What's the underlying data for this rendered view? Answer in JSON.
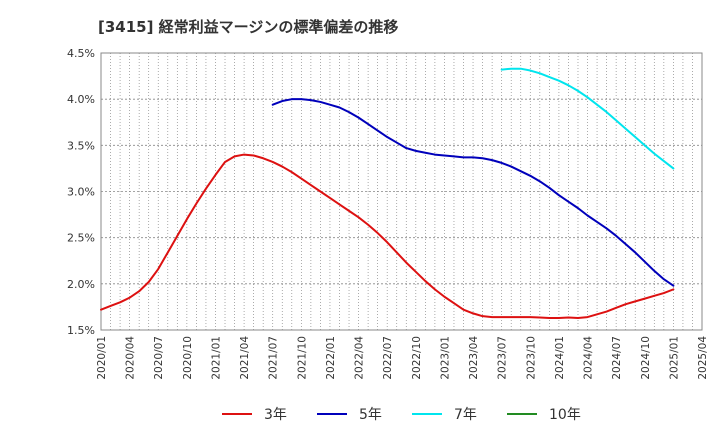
{
  "chart_data": {
    "type": "line",
    "title": "[3415]  経常利益マージンの標準偏差の推移",
    "xlabel": "",
    "ylabel": "",
    "x_ticks": [
      "2020/01",
      "2020/04",
      "2020/07",
      "2020/10",
      "2021/01",
      "2021/04",
      "2021/07",
      "2021/10",
      "2022/01",
      "2022/04",
      "2022/07",
      "2022/10",
      "2023/01",
      "2023/04",
      "2023/07",
      "2023/10",
      "2024/01",
      "2024/04",
      "2024/07",
      "2024/10",
      "2025/01",
      "2025/04"
    ],
    "y_ticks": [
      "1.5%",
      "2.0%",
      "2.5%",
      "3.0%",
      "3.5%",
      "4.0%",
      "4.5%"
    ],
    "ylim": [
      1.5,
      4.5
    ],
    "xlim": [
      "2020/01",
      "2025/04"
    ],
    "grid": true,
    "legend_position": "bottom",
    "series": [
      {
        "name": "3年",
        "color": "#dd1111",
        "x": [
          "2020/01",
          "2020/02",
          "2020/03",
          "2020/04",
          "2020/05",
          "2020/06",
          "2020/07",
          "2020/08",
          "2020/09",
          "2020/10",
          "2020/11",
          "2020/12",
          "2021/01",
          "2021/02",
          "2021/03",
          "2021/04",
          "2021/05",
          "2021/06",
          "2021/07",
          "2021/08",
          "2021/09",
          "2021/10",
          "2021/11",
          "2021/12",
          "2022/01",
          "2022/02",
          "2022/03",
          "2022/04",
          "2022/05",
          "2022/06",
          "2022/07",
          "2022/08",
          "2022/09",
          "2022/10",
          "2022/11",
          "2022/12",
          "2023/01",
          "2023/02",
          "2023/03",
          "2023/04",
          "2023/05",
          "2023/06",
          "2023/07",
          "2023/08",
          "2023/09",
          "2023/10",
          "2023/11",
          "2023/12",
          "2024/01",
          "2024/02",
          "2024/03",
          "2024/04",
          "2024/05",
          "2024/06",
          "2024/07",
          "2024/08",
          "2024/09",
          "2024/10",
          "2024/11",
          "2024/12",
          "2025/01"
        ],
        "values": [
          1.72,
          1.76,
          1.8,
          1.85,
          1.92,
          2.02,
          2.16,
          2.34,
          2.52,
          2.7,
          2.87,
          3.03,
          3.18,
          3.32,
          3.38,
          3.4,
          3.39,
          3.36,
          3.32,
          3.27,
          3.21,
          3.14,
          3.07,
          3.0,
          2.93,
          2.86,
          2.79,
          2.72,
          2.64,
          2.55,
          2.45,
          2.34,
          2.23,
          2.13,
          2.03,
          1.94,
          1.86,
          1.79,
          1.72,
          1.68,
          1.65,
          1.64,
          1.64,
          1.64,
          1.64,
          1.64,
          1.635,
          1.63,
          1.63,
          1.635,
          1.63,
          1.64,
          1.67,
          1.7,
          1.74,
          1.78,
          1.81,
          1.84,
          1.87,
          1.9,
          1.94
        ]
      },
      {
        "name": "5年",
        "color": "#0000bb",
        "x": [
          "2021/07",
          "2021/08",
          "2021/09",
          "2021/10",
          "2021/11",
          "2021/12",
          "2022/01",
          "2022/02",
          "2022/03",
          "2022/04",
          "2022/05",
          "2022/06",
          "2022/07",
          "2022/08",
          "2022/09",
          "2022/10",
          "2022/11",
          "2022/12",
          "2023/01",
          "2023/02",
          "2023/03",
          "2023/04",
          "2023/05",
          "2023/06",
          "2023/07",
          "2023/08",
          "2023/09",
          "2023/10",
          "2023/11",
          "2023/12",
          "2024/01",
          "2024/02",
          "2024/03",
          "2024/04",
          "2024/05",
          "2024/06",
          "2024/07",
          "2024/08",
          "2024/09",
          "2024/10",
          "2024/11",
          "2024/12",
          "2025/01"
        ],
        "values": [
          3.94,
          3.98,
          4.0,
          4.0,
          3.99,
          3.97,
          3.94,
          3.91,
          3.86,
          3.8,
          3.73,
          3.66,
          3.59,
          3.53,
          3.47,
          3.44,
          3.42,
          3.4,
          3.39,
          3.38,
          3.37,
          3.37,
          3.36,
          3.34,
          3.31,
          3.27,
          3.22,
          3.17,
          3.11,
          3.04,
          2.96,
          2.89,
          2.82,
          2.74,
          2.67,
          2.6,
          2.52,
          2.43,
          2.34,
          2.24,
          2.14,
          2.05,
          1.98
        ]
      },
      {
        "name": "7年",
        "color": "#00e5ee",
        "x": [
          "2023/07",
          "2023/08",
          "2023/09",
          "2023/10",
          "2023/11",
          "2023/12",
          "2024/01",
          "2024/02",
          "2024/03",
          "2024/04",
          "2024/05",
          "2024/06",
          "2024/07",
          "2024/08",
          "2024/09",
          "2024/10",
          "2024/11",
          "2024/12",
          "2025/01"
        ],
        "values": [
          4.32,
          4.33,
          4.33,
          4.31,
          4.28,
          4.24,
          4.2,
          4.15,
          4.09,
          4.02,
          3.94,
          3.86,
          3.77,
          3.68,
          3.59,
          3.5,
          3.41,
          3.33,
          3.25
        ]
      },
      {
        "name": "10年",
        "color": "#228b22",
        "x": [],
        "values": []
      }
    ]
  }
}
